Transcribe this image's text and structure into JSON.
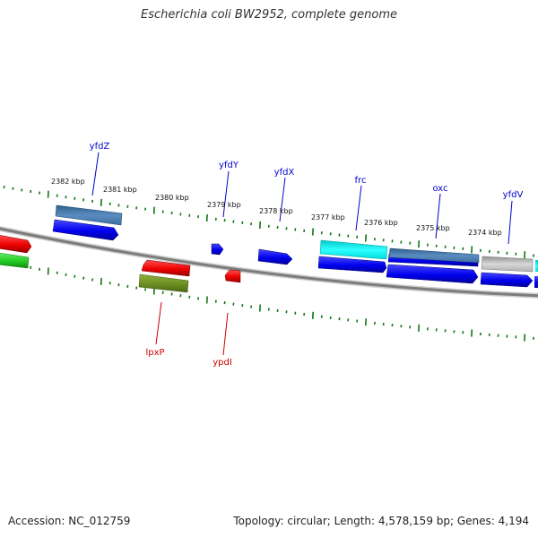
{
  "title": "Escherichia coli BW2952, complete genome",
  "footer": {
    "accession": "Accession: NC_012759",
    "topology": "Topology: circular; Length: 4,578,159 bp; Genes: 4,194"
  },
  "colors": {
    "forward_label": "#0000cc",
    "reverse_label": "#cc0000",
    "tick": "#117711",
    "backbone": "#808080"
  },
  "scale_labels": [
    {
      "text": "2382 kbp",
      "pos_kbp": 2382
    },
    {
      "text": "2381 kbp",
      "pos_kbp": 2381
    },
    {
      "text": "2380 kbp",
      "pos_kbp": 2380
    },
    {
      "text": "2379 kbp",
      "pos_kbp": 2379
    },
    {
      "text": "2378 kbp",
      "pos_kbp": 2378
    },
    {
      "text": "2377 kbp",
      "pos_kbp": 2377
    },
    {
      "text": "2376 kbp",
      "pos_kbp": 2376
    },
    {
      "text": "2375 kbp",
      "pos_kbp": 2375
    },
    {
      "text": "2374 kbp",
      "pos_kbp": 2374
    }
  ],
  "gene_labels": [
    {
      "name": "yfdZ",
      "strand": "forward"
    },
    {
      "name": "yfdY",
      "strand": "forward"
    },
    {
      "name": "yfdX",
      "strand": "forward"
    },
    {
      "name": "frc",
      "strand": "forward"
    },
    {
      "name": "oxc",
      "strand": "forward"
    },
    {
      "name": "yfdV",
      "strand": "forward"
    },
    {
      "name": "lpxP",
      "strand": "reverse"
    },
    {
      "name": "ypdI",
      "strand": "reverse"
    }
  ],
  "features": [
    {
      "name": "forward-gene-1",
      "color": "#0000ee"
    },
    {
      "name": "forward-gene-2",
      "color": "#0000ee"
    },
    {
      "name": "forward-gene-3",
      "color": "#0000ee"
    },
    {
      "name": "forward-gene-4",
      "color": "#0000ee"
    },
    {
      "name": "forward-gene-5",
      "color": "#0000ee"
    },
    {
      "name": "forward-gene-6",
      "color": "#0000ee"
    },
    {
      "name": "forward-gene-7",
      "color": "#0000ee"
    },
    {
      "name": "forward-gene-8",
      "color": "#0000ee"
    },
    {
      "name": "cds-blue-1",
      "color": "#4d7fb3"
    },
    {
      "name": "cds-blue-2",
      "color": "#4d7fb3"
    },
    {
      "name": "cds-cyan",
      "color": "#00e5e5"
    },
    {
      "name": "cds-gray",
      "color": "#b8b8b8"
    },
    {
      "name": "cds-cyan-edge",
      "color": "#00e5e5"
    },
    {
      "name": "reverse-gene-1",
      "color": "#ee0000"
    },
    {
      "name": "reverse-gene-2",
      "color": "#ee0000"
    },
    {
      "name": "reverse-gene-3",
      "color": "#ee0000"
    },
    {
      "name": "reverse-cds-green",
      "color": "#22cc22"
    },
    {
      "name": "reverse-cds-olive",
      "color": "#6b8e23"
    }
  ]
}
